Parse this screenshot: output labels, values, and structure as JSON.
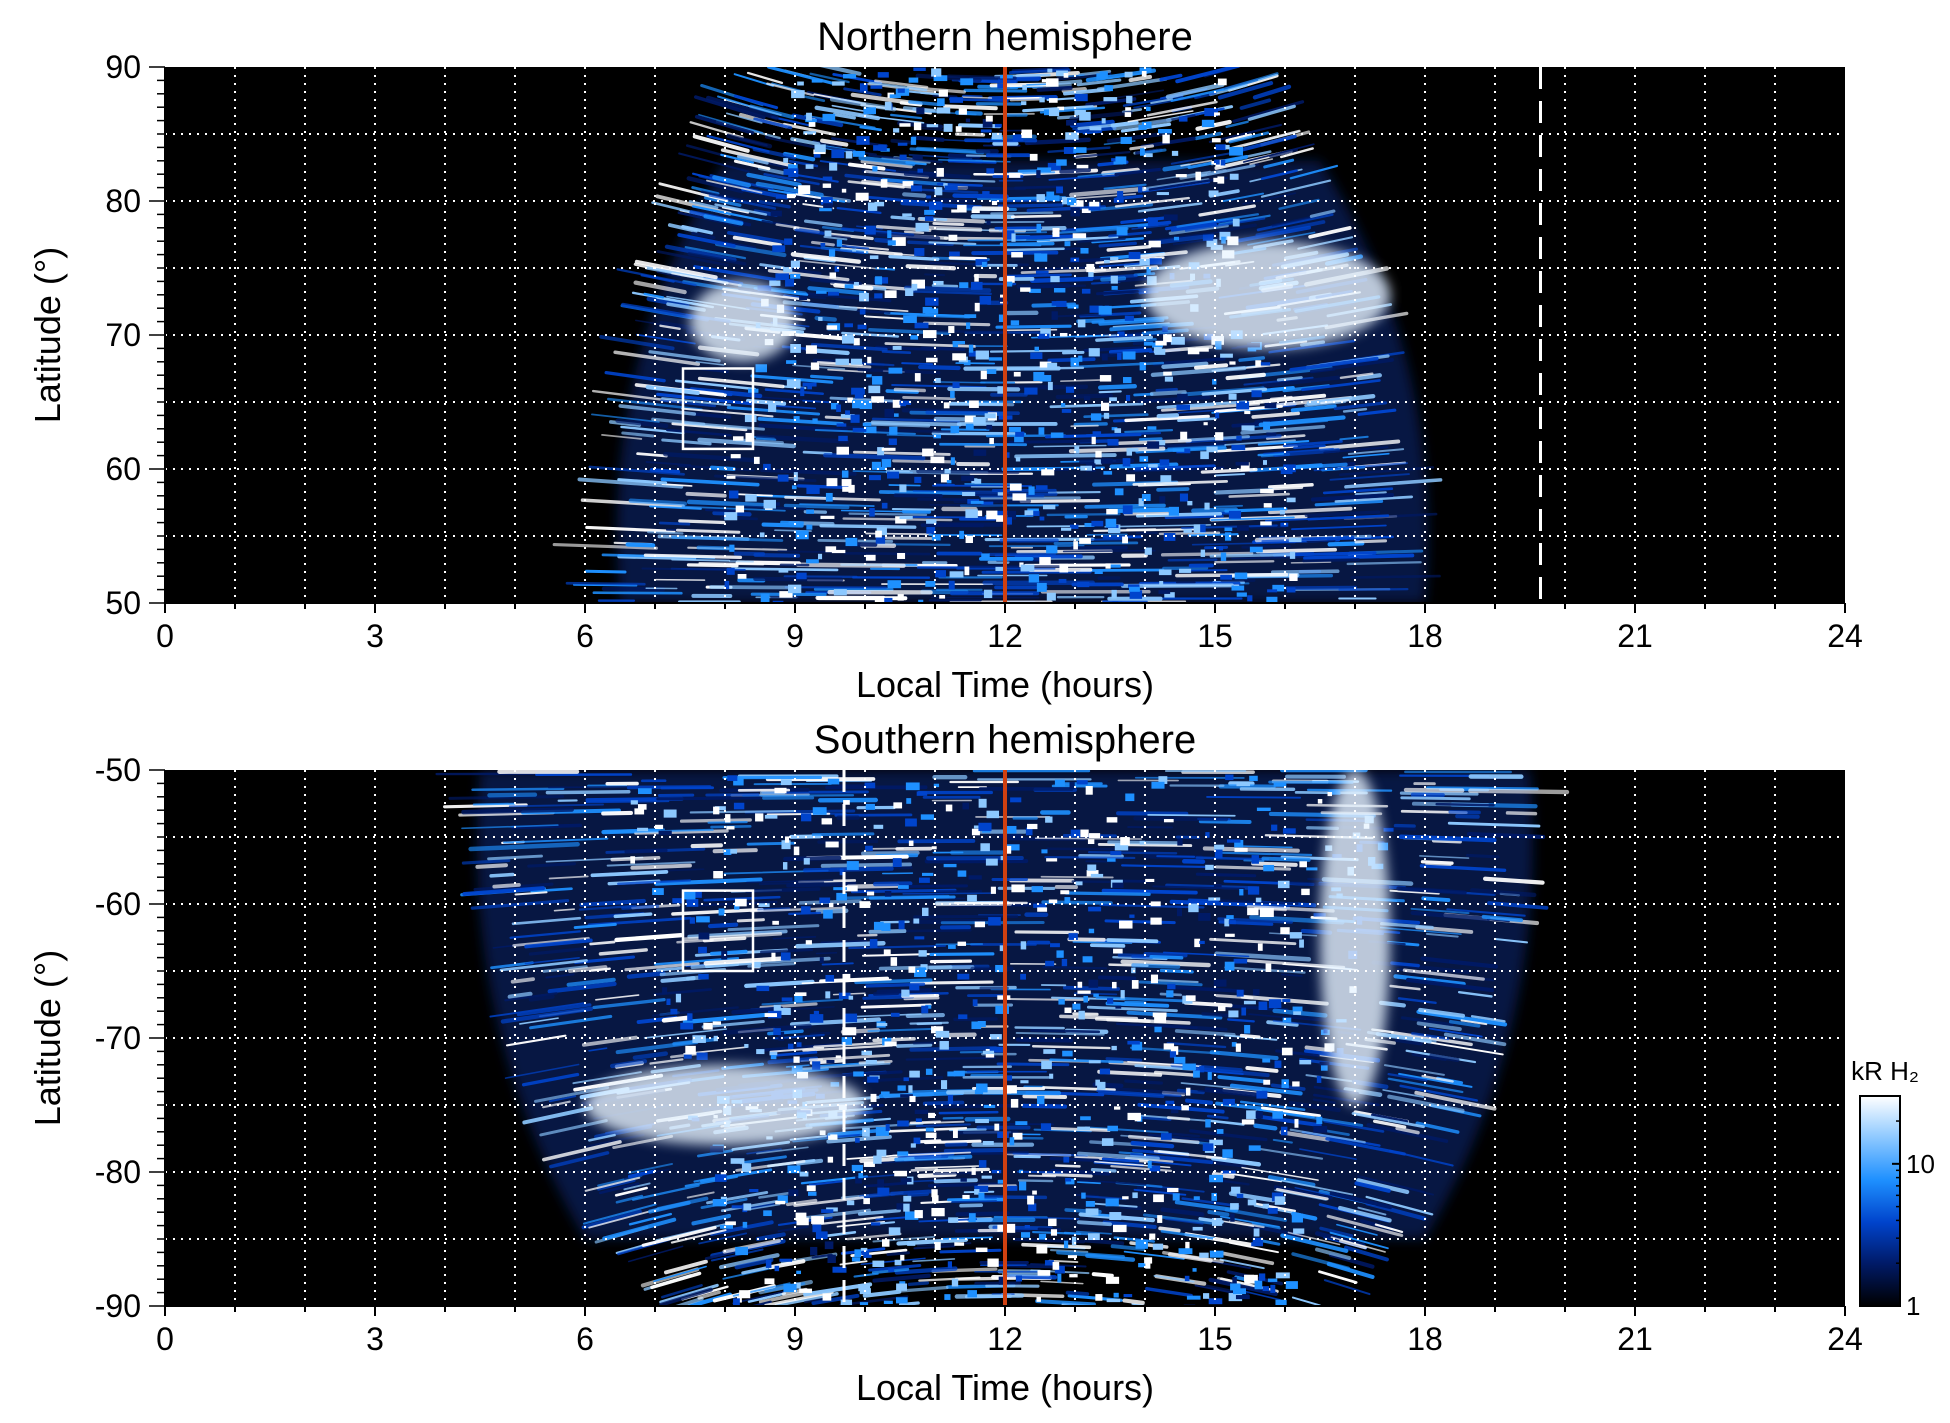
{
  "chart_data": [
    {
      "type": "heatmap",
      "title": "Northern hemisphere",
      "xlabel": "Local Time (hours)",
      "ylabel": "Latitude (°)",
      "xlim": [
        0,
        24
      ],
      "ylim": [
        50,
        90
      ],
      "xticks": [
        0,
        3,
        6,
        9,
        12,
        15,
        18,
        21,
        24
      ],
      "yticks": [
        50,
        60,
        70,
        80,
        90
      ],
      "grid": true,
      "background": "#000000",
      "emission_extent_lt": [
        6.5,
        18.0
      ],
      "noon_line": {
        "x": 12,
        "color": "#d04010"
      },
      "dashed_line": {
        "x": 19.65,
        "color": "#ffffff"
      },
      "box": {
        "x": [
          7.4,
          8.4
        ],
        "y": [
          61.5,
          67.5
        ]
      },
      "bright_arcs": [
        {
          "x": [
            7.5,
            9.0
          ],
          "y": [
            68,
            74
          ]
        },
        {
          "x": [
            14.0,
            17.5
          ],
          "y": [
            69,
            77
          ]
        }
      ]
    },
    {
      "type": "heatmap",
      "title": "Southern hemisphere",
      "xlabel": "Local Time (hours)",
      "ylabel": "Latitude (°)",
      "xlim": [
        0,
        24
      ],
      "ylim": [
        -90,
        -50
      ],
      "xticks": [
        0,
        3,
        6,
        9,
        12,
        15,
        18,
        21,
        24
      ],
      "yticks": [
        -90,
        -80,
        -70,
        -60,
        -50
      ],
      "grid": true,
      "background": "#000000",
      "emission_extent_lt": [
        4.5,
        19.5
      ],
      "noon_line": {
        "x": 12,
        "color": "#d04010"
      },
      "dashed_line": {
        "x": 9.7,
        "color": "#ffffff"
      },
      "box": {
        "x": [
          7.4,
          8.4
        ],
        "y": [
          -65,
          -59
        ]
      },
      "bright_arcs": [
        {
          "x": [
            6.0,
            10.0
          ],
          "y": [
            -78,
            -72
          ]
        },
        {
          "x": [
            16.5,
            17.5
          ],
          "y": [
            -75,
            -50
          ]
        }
      ]
    }
  ],
  "colorbar": {
    "title": "kR H₂",
    "scale": "log",
    "range": [
      1,
      30
    ],
    "ticks": [
      {
        "value": 1,
        "label": "1"
      },
      {
        "value": 10,
        "label": "10"
      }
    ],
    "colors": [
      "#000000",
      "#001a66",
      "#0044cc",
      "#1e90ff",
      "#8cc8ff",
      "#ffffff"
    ]
  }
}
